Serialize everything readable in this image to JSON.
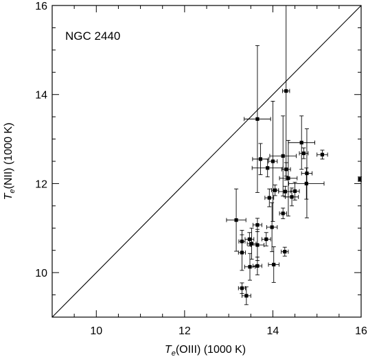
{
  "chart_data": {
    "type": "scatter",
    "annotation": "NGC 2440",
    "xlabel": {
      "symbol": "T",
      "subscript": "e",
      "rest": "(OIII) (1000 K)"
    },
    "ylabel": {
      "symbol": "T",
      "subscript": "e",
      "rest": "(NII) (1000 K)"
    },
    "xlim": [
      9,
      16
    ],
    "ylim": [
      9,
      16
    ],
    "xticks": [
      "10",
      "12",
      "14",
      "16"
    ],
    "yticks": [
      "10",
      "12",
      "14",
      "16"
    ],
    "reference_line": "y = x",
    "series": [
      {
        "points": [
          {
            "x": 14.3,
            "y": 14.08,
            "xerr": 0.08,
            "yerr": 2.0
          },
          {
            "x": 13.65,
            "y": 13.45,
            "xerr": 0.3,
            "yerr": 1.65
          },
          {
            "x": 13.72,
            "y": 12.55,
            "xerr": 0.18,
            "yerr": 0.35
          },
          {
            "x": 14.0,
            "y": 12.5,
            "xerr": 0.1,
            "yerr": 1.35
          },
          {
            "x": 14.23,
            "y": 12.62,
            "xerr": 0.3,
            "yerr": 0.9
          },
          {
            "x": 14.65,
            "y": 12.92,
            "xerr": 0.3,
            "yerr": 0.6
          },
          {
            "x": 14.7,
            "y": 12.68,
            "xerr": 0.1,
            "yerr": 0.12
          },
          {
            "x": 15.12,
            "y": 12.65,
            "xerr": 0.12,
            "yerr": 0.1
          },
          {
            "x": 13.88,
            "y": 12.35,
            "xerr": 0.35,
            "yerr": 0.2
          },
          {
            "x": 14.3,
            "y": 12.32,
            "xerr": 0.1,
            "yerr": 0.15
          },
          {
            "x": 14.35,
            "y": 12.12,
            "xerr": 0.2,
            "yerr": 0.85
          },
          {
            "x": 14.77,
            "y": 12.23,
            "xerr": 0.12,
            "yerr": 1.0
          },
          {
            "x": 14.76,
            "y": 12.0,
            "xerr": 0.4,
            "yerr": 0.35
          },
          {
            "x": 14.05,
            "y": 11.85,
            "xerr": 0.08,
            "yerr": 0.12
          },
          {
            "x": 14.28,
            "y": 11.82,
            "xerr": 0.15,
            "yerr": 0.12
          },
          {
            "x": 14.5,
            "y": 11.83,
            "xerr": 0.1,
            "yerr": 0.2
          },
          {
            "x": 13.92,
            "y": 11.68,
            "xerr": 0.1,
            "yerr": 0.2
          },
          {
            "x": 14.43,
            "y": 11.7,
            "xerr": 0.15,
            "yerr": 0.2
          },
          {
            "x": 15.97,
            "y": 12.1,
            "xerr": 0.03,
            "yerr": 0.05
          },
          {
            "x": 14.23,
            "y": 11.33,
            "xerr": 0.08,
            "yerr": 0.12
          },
          {
            "x": 13.17,
            "y": 11.18,
            "xerr": 0.22,
            "yerr": 0.7
          },
          {
            "x": 13.65,
            "y": 11.07,
            "xerr": 0.1,
            "yerr": 0.15
          },
          {
            "x": 13.98,
            "y": 11.02,
            "xerr": 0.12,
            "yerr": 0.55
          },
          {
            "x": 13.3,
            "y": 10.7,
            "xerr": 0.07,
            "yerr": 0.25
          },
          {
            "x": 13.47,
            "y": 10.75,
            "xerr": 0.1,
            "yerr": 0.15
          },
          {
            "x": 13.85,
            "y": 10.75,
            "xerr": 0.1,
            "yerr": 0.15
          },
          {
            "x": 13.52,
            "y": 10.65,
            "xerr": 0.1,
            "yerr": 0.35
          },
          {
            "x": 13.65,
            "y": 10.62,
            "xerr": 0.15,
            "yerr": 0.35
          },
          {
            "x": 13.3,
            "y": 10.45,
            "xerr": 0.08,
            "yerr": 0.4
          },
          {
            "x": 14.27,
            "y": 10.47,
            "xerr": 0.08,
            "yerr": 0.1
          },
          {
            "x": 13.48,
            "y": 10.13,
            "xerr": 0.12,
            "yerr": 0.3
          },
          {
            "x": 13.65,
            "y": 10.15,
            "xerr": 0.1,
            "yerr": 0.2
          },
          {
            "x": 14.02,
            "y": 10.18,
            "xerr": 0.12,
            "yerr": 0.4
          },
          {
            "x": 13.3,
            "y": 9.65,
            "xerr": 0.08,
            "yerr": 0.12
          },
          {
            "x": 13.4,
            "y": 9.48,
            "xerr": 0.1,
            "yerr": 0.2
          }
        ]
      }
    ]
  }
}
